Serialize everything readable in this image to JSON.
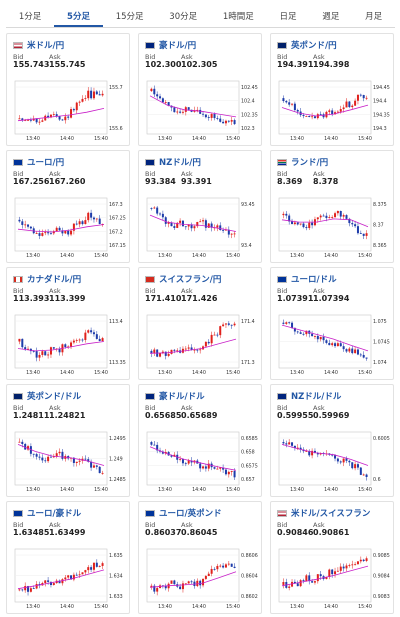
{
  "tabs": [
    {
      "label": "1分足",
      "active": false
    },
    {
      "label": "5分足",
      "active": true
    },
    {
      "label": "15分足",
      "active": false
    },
    {
      "label": "30分足",
      "active": false
    },
    {
      "label": "1時間足",
      "active": false
    },
    {
      "label": "日足",
      "active": false
    },
    {
      "label": "週足",
      "active": false
    },
    {
      "label": "月足",
      "active": false
    }
  ],
  "labels": {
    "bid": "Bid",
    "ask": "Ask"
  },
  "colors": {
    "accent": "#2257a5",
    "up": "#e0211c",
    "down": "#1e3caa",
    "ma": "#c81ec8"
  },
  "cards": [
    {
      "title": "米ドル/円",
      "flag": "us",
      "bid": "155.743",
      "ask": "155.745",
      "chart": {
        "x_ticks": [
          "13:40",
          "14:40",
          "15:40"
        ],
        "y_ticks": [
          "155.7",
          "155.6"
        ],
        "trend": [
          0.25,
          0.2,
          0.3,
          0.25,
          0.2,
          0.3,
          0.35,
          0.3,
          0.25,
          0.3,
          0.35,
          0.45,
          0.6,
          0.7,
          0.8,
          0.75,
          0.85,
          0.8
        ],
        "ma": [
          0.22,
          0.26,
          0.3,
          0.34,
          0.4,
          0.48
        ]
      }
    },
    {
      "title": "豪ドル/円",
      "flag": "au",
      "bid": "102.300",
      "ask": "102.305",
      "chart": {
        "x_ticks": [
          "13:40",
          "14:40",
          "15:40"
        ],
        "y_ticks": [
          "102.45",
          "102.4",
          "102.35",
          "102.3"
        ],
        "trend": [
          0.85,
          0.75,
          0.7,
          0.6,
          0.5,
          0.45,
          0.4,
          0.45,
          0.35,
          0.4,
          0.35,
          0.3,
          0.35,
          0.3,
          0.25,
          0.2,
          0.25,
          0.15
        ],
        "ma": [
          0.75,
          0.55,
          0.45,
          0.42,
          0.36,
          0.3
        ]
      }
    },
    {
      "title": "英ポンド/円",
      "flag": "gb",
      "bid": "194.391",
      "ask": "194.398",
      "chart": {
        "x_ticks": [
          "13:40",
          "14:40",
          "15:40"
        ],
        "y_ticks": [
          "194.45",
          "194.4",
          "194.35",
          "194.3"
        ],
        "trend": [
          0.7,
          0.6,
          0.5,
          0.35,
          0.3,
          0.25,
          0.3,
          0.35,
          0.3,
          0.4,
          0.35,
          0.45,
          0.5,
          0.6,
          0.55,
          0.75,
          0.7,
          0.75
        ],
        "ma": [
          0.5,
          0.38,
          0.32,
          0.36,
          0.45,
          0.55
        ]
      }
    },
    {
      "title": "ユーロ/円",
      "flag": "eu",
      "bid": "167.256",
      "ask": "167.260",
      "chart": {
        "x_ticks": [
          "13:40",
          "14:40",
          "15:40"
        ],
        "y_ticks": [
          "167.3",
          "167.25",
          "167.2",
          "167.15"
        ],
        "trend": [
          0.6,
          0.5,
          0.45,
          0.35,
          0.3,
          0.35,
          0.3,
          0.4,
          0.35,
          0.3,
          0.35,
          0.45,
          0.5,
          0.55,
          0.7,
          0.65,
          0.6,
          0.55
        ],
        "ma": [
          0.4,
          0.36,
          0.34,
          0.38,
          0.45,
          0.5
        ]
      }
    },
    {
      "title": "NZドル/円",
      "flag": "nz",
      "bid": "93.384",
      "ask": "93.391",
      "chart": {
        "x_ticks": [
          "13:40",
          "14:40",
          "15:40"
        ],
        "y_ticks": [
          "93.45",
          "93.4"
        ],
        "trend": [
          0.85,
          0.75,
          0.7,
          0.55,
          0.5,
          0.45,
          0.55,
          0.5,
          0.45,
          0.5,
          0.55,
          0.5,
          0.45,
          0.4,
          0.45,
          0.35,
          0.3,
          0.25
        ],
        "ma": [
          0.7,
          0.55,
          0.5,
          0.48,
          0.42,
          0.35
        ]
      }
    },
    {
      "title": "ランド/円",
      "flag": "za",
      "bid": "8.369",
      "ask": "8.378",
      "chart": {
        "x_ticks": [
          "13:40",
          "14:40",
          "15:40"
        ],
        "y_ticks": [
          "8.375",
          "8.37",
          "8.365"
        ],
        "trend": [
          0.7,
          0.6,
          0.55,
          0.5,
          0.45,
          0.5,
          0.55,
          0.6,
          0.65,
          0.7,
          0.65,
          0.75,
          0.7,
          0.6,
          0.55,
          0.4,
          0.3,
          0.25
        ],
        "ma": [
          0.6,
          0.55,
          0.55,
          0.62,
          0.6,
          0.45
        ]
      }
    },
    {
      "title": "カナダドル/円",
      "flag": "ca",
      "bid": "113.393",
      "ask": "113.399",
      "chart": {
        "x_ticks": [
          "13:40",
          "14:40",
          "15:40"
        ],
        "y_ticks": [
          "113.4",
          "113.35"
        ],
        "trend": [
          0.5,
          0.4,
          0.3,
          0.25,
          0.2,
          0.25,
          0.3,
          0.35,
          0.3,
          0.4,
          0.45,
          0.5,
          0.55,
          0.6,
          0.7,
          0.65,
          0.6,
          0.55
        ],
        "ma": [
          0.35,
          0.3,
          0.32,
          0.38,
          0.45,
          0.5
        ]
      }
    },
    {
      "title": "スイスフラン/円",
      "flag": "ch",
      "bid": "171.410",
      "ask": "171.426",
      "chart": {
        "x_ticks": [
          "13:40",
          "14:40",
          "15:40"
        ],
        "y_ticks": [
          "171.4",
          "171.3"
        ],
        "trend": [
          0.3,
          0.25,
          0.2,
          0.25,
          0.3,
          0.25,
          0.3,
          0.35,
          0.3,
          0.35,
          0.4,
          0.45,
          0.55,
          0.65,
          0.75,
          0.85,
          0.8,
          0.85
        ],
        "ma": [
          0.25,
          0.26,
          0.3,
          0.35,
          0.45,
          0.55
        ]
      }
    },
    {
      "title": "ユーロ/ドル",
      "flag": "eu",
      "bid": "1.07391",
      "ask": "1.07394",
      "chart": {
        "x_ticks": [
          "13:40",
          "14:40",
          "15:40"
        ],
        "y_ticks": [
          "1.075",
          "1.0745",
          "1.074"
        ],
        "trend": [
          0.9,
          0.85,
          0.8,
          0.75,
          0.7,
          0.72,
          0.65,
          0.6,
          0.55,
          0.5,
          0.45,
          0.48,
          0.4,
          0.35,
          0.3,
          0.25,
          0.2,
          0.15
        ],
        "ma": [
          0.85,
          0.75,
          0.65,
          0.55,
          0.42,
          0.3
        ]
      }
    },
    {
      "title": "英ポンド/ドル",
      "flag": "gb",
      "bid": "1.24811",
      "ask": "1.24821",
      "chart": {
        "x_ticks": [
          "13:40",
          "14:40",
          "15:40"
        ],
        "y_ticks": [
          "1.2495",
          "1.249",
          "1.2485"
        ],
        "trend": [
          0.85,
          0.75,
          0.7,
          0.6,
          0.55,
          0.5,
          0.55,
          0.5,
          0.6,
          0.55,
          0.5,
          0.45,
          0.4,
          0.45,
          0.4,
          0.35,
          0.3,
          0.2
        ],
        "ma": [
          0.8,
          0.65,
          0.55,
          0.52,
          0.45,
          0.35
        ]
      }
    },
    {
      "title": "豪ドル/ドル",
      "flag": "au",
      "bid": "0.65685",
      "ask": "0.65689",
      "chart": {
        "x_ticks": [
          "13:40",
          "14:40",
          "15:40"
        ],
        "y_ticks": [
          "0.6585",
          "0.658",
          "0.6575",
          "0.657"
        ],
        "trend": [
          0.85,
          0.75,
          0.7,
          0.6,
          0.55,
          0.5,
          0.45,
          0.4,
          0.45,
          0.4,
          0.35,
          0.3,
          0.35,
          0.3,
          0.25,
          0.2,
          0.25,
          0.15
        ],
        "ma": [
          0.75,
          0.6,
          0.48,
          0.4,
          0.32,
          0.25
        ]
      }
    },
    {
      "title": "NZドル/ドル",
      "flag": "nz",
      "bid": "0.59955",
      "ask": "0.59969",
      "chart": {
        "x_ticks": [
          "13:40",
          "14:40",
          "15:40"
        ],
        "y_ticks": [
          "0.6005",
          "0.6"
        ],
        "trend": [
          0.85,
          0.8,
          0.75,
          0.7,
          0.65,
          0.6,
          0.65,
          0.6,
          0.55,
          0.6,
          0.55,
          0.5,
          0.45,
          0.4,
          0.35,
          0.3,
          0.2,
          0.15
        ],
        "ma": [
          0.8,
          0.7,
          0.62,
          0.58,
          0.48,
          0.35
        ]
      }
    },
    {
      "title": "ユーロ/豪ドル",
      "flag": "eu",
      "bid": "1.63485",
      "ask": "1.63499",
      "chart": {
        "x_ticks": [
          "13:40",
          "14:40",
          "15:40"
        ],
        "y_ticks": [
          "1.635",
          "1.634",
          "1.633"
        ],
        "trend": [
          0.2,
          0.25,
          0.2,
          0.3,
          0.25,
          0.35,
          0.3,
          0.4,
          0.35,
          0.45,
          0.5,
          0.45,
          0.55,
          0.6,
          0.65,
          0.7,
          0.75,
          0.8
        ],
        "ma": [
          0.22,
          0.28,
          0.35,
          0.42,
          0.52,
          0.62
        ]
      }
    },
    {
      "title": "ユーロ/英ポンド",
      "flag": "eu",
      "bid": "0.86037",
      "ask": "0.86045",
      "chart": {
        "x_ticks": [
          "13:40",
          "14:40",
          "15:40"
        ],
        "y_ticks": [
          "0.8606",
          "0.8604",
          "0.8602"
        ],
        "trend": [
          0.25,
          0.2,
          0.3,
          0.25,
          0.35,
          0.3,
          0.25,
          0.3,
          0.35,
          0.3,
          0.35,
          0.4,
          0.55,
          0.7,
          0.65,
          0.75,
          0.7,
          0.6
        ],
        "ma": [
          0.25,
          0.28,
          0.3,
          0.33,
          0.45,
          0.58
        ]
      }
    },
    {
      "title": "米ドル/スイスフラン",
      "flag": "us",
      "bid": "0.90846",
      "ask": "0.90861",
      "chart": {
        "x_ticks": [
          "13:40",
          "14:40",
          "15:40"
        ],
        "y_ticks": [
          "0.9085",
          "0.9084",
          "0.9083"
        ],
        "trend": [
          0.3,
          0.25,
          0.35,
          0.3,
          0.4,
          0.45,
          0.4,
          0.5,
          0.45,
          0.55,
          0.6,
          0.55,
          0.65,
          0.7,
          0.8,
          0.75,
          0.85,
          0.8
        ],
        "ma": [
          0.28,
          0.35,
          0.42,
          0.5,
          0.6,
          0.7
        ]
      }
    }
  ]
}
